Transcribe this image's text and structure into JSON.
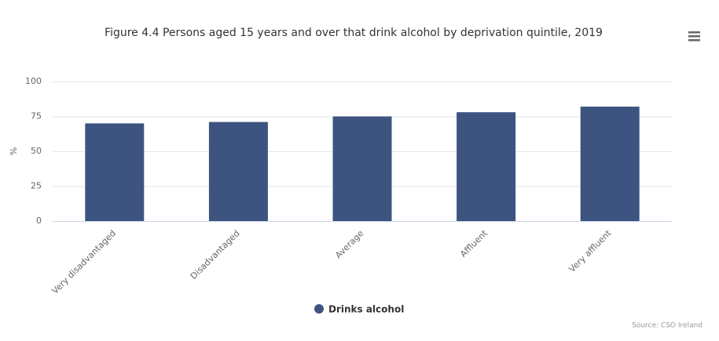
{
  "chart_data": {
    "type": "bar",
    "title": "Figure 4.4 Persons aged 15 years and over that drink alcohol by deprivation quintile, 2019",
    "y_label": "%",
    "categories": [
      "Very disadvantaged",
      "Disadvantaged",
      "Average",
      "Affluent",
      "Very affluent"
    ],
    "series": [
      {
        "name": "Drinks alcohol",
        "color": "#3e5480",
        "values": [
          70,
          71,
          75,
          78,
          82
        ]
      }
    ],
    "ylim": [
      0,
      100
    ],
    "yticks": [
      0,
      25,
      50,
      75,
      100
    ],
    "grid": true,
    "legend": "bottom",
    "credits": "Source: CSO Ireland"
  }
}
